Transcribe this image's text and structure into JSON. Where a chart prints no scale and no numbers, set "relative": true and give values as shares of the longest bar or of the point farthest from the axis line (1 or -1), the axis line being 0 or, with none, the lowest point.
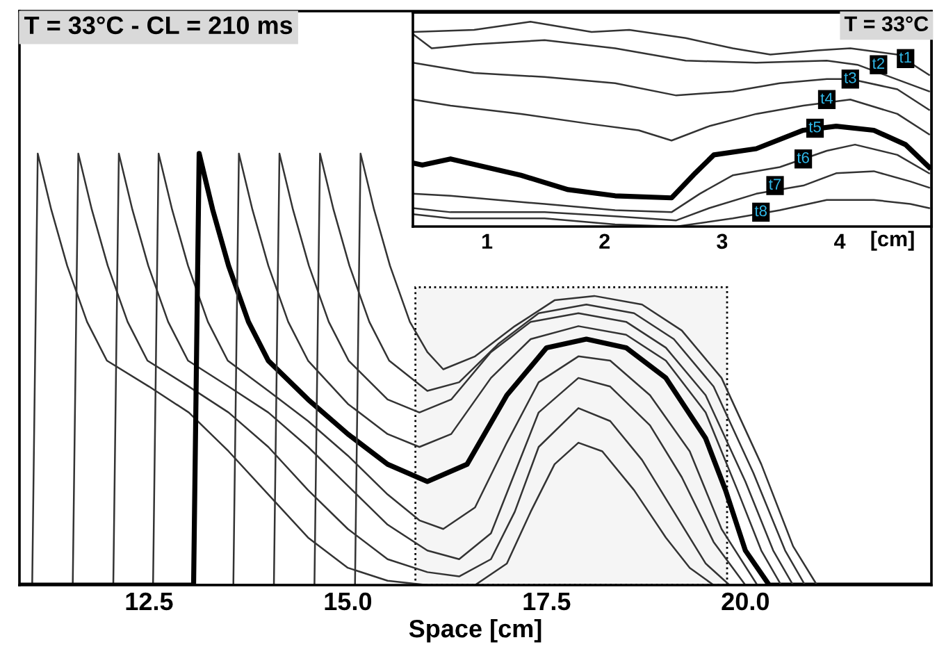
{
  "chart_data": [
    {
      "type": "line",
      "title": "T = 33°C - CL = 210 ms",
      "xlabel": "Space [cm]",
      "relative": true,
      "xlim": [
        10.87,
        22.34
      ],
      "xticks": [
        {
          "value": 12.5,
          "label": "12.5"
        },
        {
          "value": 15,
          "label": "15.0"
        },
        {
          "value": 17.5,
          "label": "17.5"
        },
        {
          "value": 20,
          "label": "20.0"
        }
      ],
      "grid": false,
      "legend": false,
      "tick_labels": "x",
      "bands": [
        {
          "axis": "x",
          "from": 15.85,
          "to": 19.77,
          "color": "#000000"
        }
      ],
      "series": [
        {
          "color": "#333333",
          "x": [
            10.9,
            11.03,
            11.1,
            11.27,
            11.47,
            11.72,
            11.97,
            12.5,
            13.0,
            13.5,
            14.0,
            14.5,
            15.0,
            15.5,
            16.0,
            16.6,
            17.0,
            17.3,
            17.6,
            17.9,
            18.2,
            18.6,
            19.0,
            19.3,
            19.6,
            22.3
          ],
          "values": [
            0,
            0,
            1,
            0.87,
            0.74,
            0.61,
            0.52,
            0.46,
            0.4,
            0.31,
            0.21,
            0.11,
            0.04,
            0.01,
            0,
            0,
            0.05,
            0.17,
            0.28,
            0.33,
            0.31,
            0.22,
            0.11,
            0.04,
            0,
            0
          ]
        },
        {
          "color": "#333333",
          "x": [
            10.9,
            11.54,
            11.61,
            11.78,
            11.98,
            12.23,
            12.48,
            13.0,
            13.5,
            14.0,
            14.5,
            15.0,
            15.5,
            16.0,
            16.4,
            16.8,
            17.1,
            17.4,
            17.9,
            18.3,
            18.7,
            19.1,
            19.5,
            19.8,
            22.3
          ],
          "values": [
            0,
            0,
            1,
            0.87,
            0.74,
            0.61,
            0.52,
            0.46,
            0.4,
            0.32,
            0.22,
            0.13,
            0.06,
            0.03,
            0.02,
            0.06,
            0.17,
            0.32,
            0.41,
            0.38,
            0.29,
            0.17,
            0.05,
            0,
            0
          ]
        },
        {
          "color": "#333333",
          "x": [
            10.9,
            12.05,
            12.12,
            12.29,
            12.49,
            12.74,
            12.99,
            13.5,
            14.0,
            14.5,
            15.0,
            15.5,
            16.0,
            16.4,
            16.8,
            17.1,
            17.4,
            17.9,
            18.3,
            18.8,
            19.2,
            19.6,
            20.0,
            22.3
          ],
          "values": [
            0,
            0,
            1,
            0.87,
            0.74,
            0.61,
            0.52,
            0.46,
            0.4,
            0.32,
            0.23,
            0.14,
            0.08,
            0.06,
            0.12,
            0.26,
            0.4,
            0.48,
            0.46,
            0.37,
            0.25,
            0.1,
            0,
            0
          ]
        },
        {
          "color": "#333333",
          "x": [
            10.9,
            12.55,
            12.62,
            12.79,
            12.99,
            13.24,
            13.49,
            14.0,
            14.5,
            15.0,
            15.5,
            15.9,
            16.2,
            16.6,
            17.0,
            17.4,
            17.9,
            18.3,
            18.8,
            19.3,
            19.7,
            20.15,
            22.3
          ],
          "values": [
            0,
            0,
            1,
            0.87,
            0.74,
            0.61,
            0.52,
            0.45,
            0.38,
            0.3,
            0.21,
            0.15,
            0.13,
            0.18,
            0.33,
            0.47,
            0.53,
            0.52,
            0.44,
            0.31,
            0.13,
            0,
            0
          ]
        },
        {
          "color": "#000000",
          "x": [
            10.9,
            13.06,
            13.13,
            13.3,
            13.5,
            13.75,
            14.0,
            14.5,
            15.0,
            15.5,
            16.0,
            16.5,
            17.0,
            17.5,
            18.0,
            18.5,
            19.0,
            19.5,
            19.75,
            20.0,
            20.3,
            22.3
          ],
          "values": [
            0,
            0,
            1,
            0.87,
            0.74,
            0.61,
            0.52,
            0.43,
            0.35,
            0.28,
            0.24,
            0.28,
            0.44,
            0.55,
            0.57,
            0.55,
            0.48,
            0.34,
            0.22,
            0.08,
            0,
            0
          ]
        },
        {
          "color": "#333333",
          "x": [
            10.9,
            13.56,
            13.63,
            13.8,
            14.0,
            14.25,
            14.5,
            15.0,
            15.5,
            15.9,
            16.3,
            16.8,
            17.3,
            17.9,
            18.5,
            19.0,
            19.5,
            19.9,
            20.2,
            20.45,
            22.3
          ],
          "values": [
            0,
            0,
            1,
            0.87,
            0.74,
            0.61,
            0.52,
            0.42,
            0.35,
            0.32,
            0.35,
            0.48,
            0.57,
            0.6,
            0.58,
            0.52,
            0.4,
            0.22,
            0.08,
            0,
            0
          ]
        },
        {
          "color": "#333333",
          "x": [
            10.9,
            14.07,
            14.14,
            14.31,
            14.51,
            14.76,
            15.01,
            15.5,
            15.9,
            16.3,
            16.8,
            17.3,
            17.9,
            18.5,
            19.0,
            19.5,
            20.0,
            20.35,
            20.6,
            22.3
          ],
          "values": [
            0,
            0,
            1,
            0.87,
            0.74,
            0.61,
            0.52,
            0.43,
            0.4,
            0.43,
            0.54,
            0.61,
            0.63,
            0.61,
            0.55,
            0.44,
            0.24,
            0.08,
            0,
            0
          ]
        },
        {
          "color": "#333333",
          "x": [
            10.9,
            14.58,
            14.65,
            14.82,
            15.02,
            15.27,
            15.52,
            16.0,
            16.4,
            16.9,
            17.4,
            18.0,
            18.6,
            19.1,
            19.6,
            20.1,
            20.5,
            20.75,
            22.3
          ],
          "values": [
            0,
            0,
            1,
            0.87,
            0.74,
            0.61,
            0.52,
            0.45,
            0.47,
            0.56,
            0.63,
            0.65,
            0.63,
            0.57,
            0.46,
            0.26,
            0.08,
            0,
            0
          ]
        },
        {
          "color": "#333333",
          "x": [
            10.9,
            15.09,
            15.16,
            15.33,
            15.53,
            15.78,
            16.0,
            16.2,
            16.6,
            17.1,
            17.6,
            18.1,
            18.7,
            19.2,
            19.7,
            20.2,
            20.6,
            20.9,
            22.3
          ],
          "values": [
            0,
            0,
            1,
            0.87,
            0.74,
            0.61,
            0.54,
            0.5,
            0.53,
            0.6,
            0.66,
            0.67,
            0.65,
            0.59,
            0.48,
            0.28,
            0.09,
            0,
            0
          ]
        }
      ]
    },
    {
      "type": "line",
      "xlabel": "[cm]",
      "relative": true,
      "xlim": [
        0.37,
        4.78
      ],
      "xticks": [
        1,
        2,
        3,
        4
      ],
      "grid": false,
      "legend": false,
      "tick_labels": "x",
      "annotations": [
        "T = 33°C",
        {
          "text": "t1",
          "x": 4.56,
          "y": 0.82
        },
        {
          "text": "t2",
          "x": 4.33,
          "y": 0.79
        },
        {
          "text": "t3",
          "x": 4.09,
          "y": 0.72
        },
        {
          "text": "t4",
          "x": 3.89,
          "y": 0.62
        },
        {
          "text": "t5",
          "x": 3.79,
          "y": 0.48
        },
        {
          "text": "t6",
          "x": 3.69,
          "y": 0.33
        },
        {
          "text": "t7",
          "x": 3.45,
          "y": 0.2
        },
        {
          "text": "t8",
          "x": 3.33,
          "y": 0.07
        }
      ],
      "series": [
        {
          "color": "#333333",
          "x": [
            0.37,
            0.89,
            1.37,
            1.89,
            2.21,
            2.69,
            3.09,
            3.41,
            3.81,
            4.09,
            4.49,
            4.76
          ],
          "values": [
            0.95,
            0.96,
            1.0,
            0.95,
            0.96,
            0.92,
            0.87,
            0.84,
            0.86,
            0.87,
            0.84,
            0.74
          ]
        },
        {
          "color": "#333333",
          "x": [
            0.37,
            0.53,
            0.89,
            1.49,
            2.09,
            2.69,
            3.29,
            3.89,
            4.15,
            4.76
          ],
          "values": [
            0.94,
            0.87,
            0.89,
            0.91,
            0.87,
            0.81,
            0.8,
            0.81,
            0.79,
            0.66
          ]
        },
        {
          "color": "#333333",
          "x": [
            0.37,
            0.89,
            1.49,
            2.09,
            2.61,
            3.09,
            3.49,
            3.89,
            4.09,
            4.49,
            4.76
          ],
          "values": [
            0.8,
            0.75,
            0.73,
            0.7,
            0.64,
            0.66,
            0.7,
            0.72,
            0.72,
            0.67,
            0.57
          ]
        },
        {
          "color": "#333333",
          "x": [
            0.37,
            0.69,
            1.29,
            1.89,
            2.29,
            2.57,
            2.89,
            3.29,
            3.69,
            4.09,
            4.49,
            4.76
          ],
          "values": [
            0.62,
            0.59,
            0.55,
            0.5,
            0.47,
            0.42,
            0.49,
            0.55,
            0.59,
            0.62,
            0.55,
            0.45
          ]
        },
        {
          "color": "#000000",
          "x": [
            0.37,
            0.45,
            0.69,
            1.29,
            1.69,
            2.09,
            2.57,
            2.77,
            2.93,
            3.29,
            3.69,
            3.97,
            4.29,
            4.56,
            4.76
          ],
          "values": [
            0.31,
            0.3,
            0.33,
            0.25,
            0.18,
            0.15,
            0.14,
            0.26,
            0.35,
            0.38,
            0.47,
            0.49,
            0.47,
            0.4,
            0.29
          ]
        },
        {
          "color": "#333333",
          "x": [
            0.37,
            0.69,
            1.49,
            2.09,
            2.57,
            2.81,
            3.09,
            3.49,
            3.89,
            4.13,
            4.49,
            4.76
          ],
          "values": [
            0.16,
            0.15,
            0.11,
            0.08,
            0.07,
            0.16,
            0.25,
            0.29,
            0.37,
            0.4,
            0.35,
            0.26
          ]
        },
        {
          "color": "#333333",
          "x": [
            0.37,
            0.69,
            1.49,
            2.09,
            2.61,
            2.89,
            3.29,
            3.69,
            3.97,
            4.29,
            4.6,
            4.76
          ],
          "values": [
            0.09,
            0.07,
            0.07,
            0.05,
            0.03,
            0.09,
            0.16,
            0.2,
            0.26,
            0.27,
            0.22,
            0.19
          ]
        },
        {
          "color": "#333333",
          "x": [
            0.37,
            0.69,
            1.49,
            2.09,
            2.61,
            3.09,
            3.49,
            3.89,
            4.29,
            4.6,
            4.76
          ],
          "values": [
            0.06,
            0.04,
            0.04,
            0.01,
            0.0,
            0.04,
            0.08,
            0.13,
            0.13,
            0.11,
            0.09
          ]
        }
      ]
    }
  ]
}
